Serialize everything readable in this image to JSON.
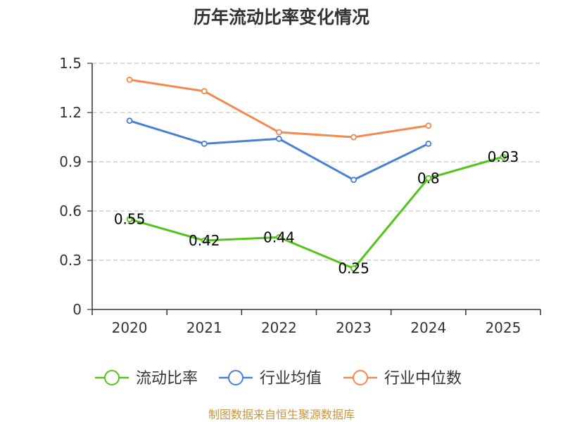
{
  "chart_data": {
    "type": "line",
    "title": "历年流动比率变化情况",
    "categories": [
      "2020",
      "2021",
      "2022",
      "2023",
      "2024",
      "2025"
    ],
    "y_ticks": [
      "0",
      "0.3",
      "0.6",
      "0.9",
      "1.2",
      "1.5"
    ],
    "ylim": [
      0,
      1.5
    ],
    "grid": true,
    "legend_position": "bottom",
    "series": [
      {
        "name": "流动比率",
        "color": "#52c41a",
        "values": [
          0.55,
          0.42,
          0.44,
          0.25,
          0.8,
          0.93
        ],
        "labels": [
          "0.55",
          "0.42",
          "0.44",
          "0.25",
          "0.8",
          "0.93"
        ]
      },
      {
        "name": "行业均值",
        "color": "#4a7fd6",
        "values": [
          1.15,
          1.01,
          1.04,
          0.79,
          1.01,
          null
        ]
      },
      {
        "name": "行业中位数",
        "color": "#f5884f",
        "values": [
          1.4,
          1.33,
          1.08,
          1.05,
          1.12,
          null
        ]
      }
    ],
    "source": "制图数据来自恒生聚源数据库",
    "source_color": "#c8963e"
  }
}
